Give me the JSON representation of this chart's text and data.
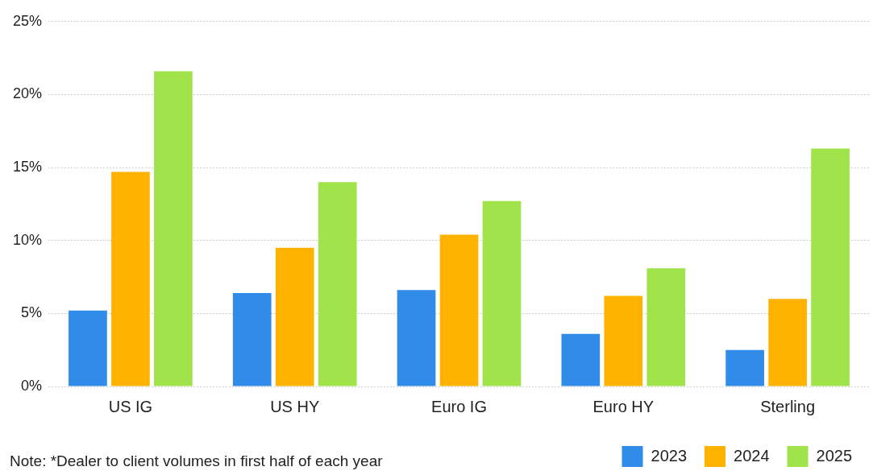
{
  "chart_data": {
    "type": "bar",
    "categories": [
      "US IG",
      "US HY",
      "Euro IG",
      "Euro HY",
      "Sterling"
    ],
    "series": [
      {
        "name": "2023",
        "color": "#308ce8",
        "values": [
          5.2,
          6.4,
          6.6,
          3.6,
          2.5
        ]
      },
      {
        "name": "2024",
        "color": "#ffb300",
        "values": [
          14.7,
          9.5,
          10.4,
          6.2,
          6.0
        ]
      },
      {
        "name": "2025",
        "color": "#a0e34a",
        "values": [
          21.6,
          14.0,
          12.7,
          8.1,
          16.3
        ]
      }
    ],
    "ylim": [
      0,
      25
    ],
    "yticks": [
      {
        "value": 0,
        "label": "0%"
      },
      {
        "value": 5,
        "label": "5%"
      },
      {
        "value": 10,
        "label": "10%"
      },
      {
        "value": 15,
        "label": "15%"
      },
      {
        "value": 20,
        "label": "20%"
      },
      {
        "value": 25,
        "label": "25%"
      }
    ],
    "grid": "y",
    "legend": "bottom right",
    "annotations": [
      "Note: *Dealer to client volumes in first half of each year"
    ]
  }
}
